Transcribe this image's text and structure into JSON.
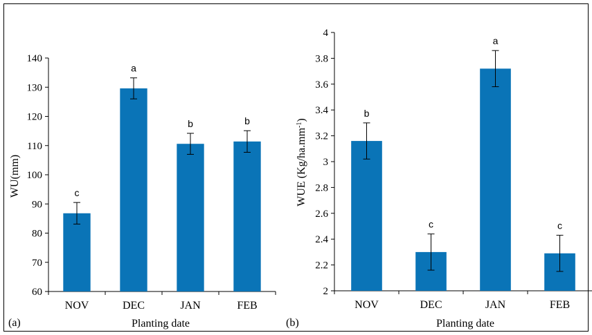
{
  "colors": {
    "bar": "#0A74B7",
    "axis": "#000000",
    "error": "#000000"
  },
  "chart_data": [
    {
      "type": "bar",
      "panel_label": "(a)",
      "categories": [
        "NOV",
        "DEC",
        "JAN",
        "FEB"
      ],
      "values": [
        86.8,
        129.6,
        110.6,
        111.4
      ],
      "errors": [
        3.7,
        3.6,
        3.6,
        3.7
      ],
      "letters": [
        "c",
        "a",
        "b",
        "b"
      ],
      "xlabel": "Planting date",
      "ylabel": "WU(mm)",
      "ylim": [
        60,
        140
      ],
      "yticks": [
        60,
        70,
        80,
        90,
        100,
        110,
        120,
        130,
        140
      ],
      "ytick_labels": [
        "60",
        "70",
        "80",
        "90",
        "100",
        "110",
        "120",
        "130",
        "140"
      ]
    },
    {
      "type": "bar",
      "panel_label": "(b)",
      "categories": [
        "NOV",
        "DEC",
        "JAN",
        "FEB"
      ],
      "values": [
        3.16,
        2.3,
        3.72,
        2.29
      ],
      "errors": [
        0.14,
        0.14,
        0.14,
        0.14
      ],
      "letters": [
        "b",
        "c",
        "a",
        "c"
      ],
      "xlabel": "Planting date",
      "ylabel": "WUE (Kg/ha.mm-1)",
      "ylabel_parts": {
        "main": "WUE (Kg/ha.mm",
        "sup": "-1",
        "close": ")"
      },
      "ylim": [
        2,
        4
      ],
      "yticks": [
        2,
        2.2,
        2.4,
        2.6,
        2.8,
        3,
        3.2,
        3.4,
        3.6,
        3.8,
        4
      ],
      "ytick_labels": [
        "2",
        "2.2",
        "2.4",
        "2.6",
        "2.8",
        "3",
        "3.2",
        "3.4",
        "3.6",
        "3.8",
        "4"
      ]
    }
  ]
}
